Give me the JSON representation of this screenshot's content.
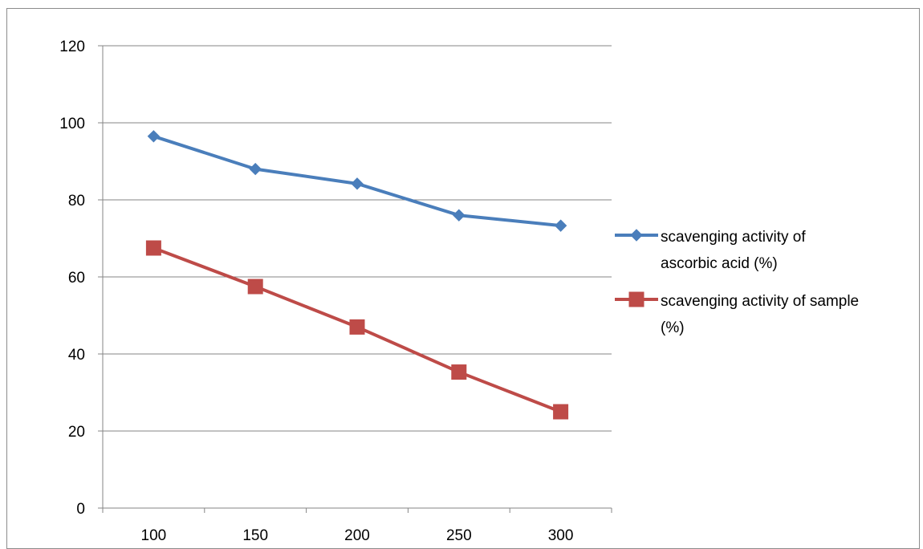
{
  "chart_data": {
    "type": "line",
    "x": [
      100,
      150,
      200,
      250,
      300
    ],
    "ylim": [
      0,
      120
    ],
    "yticks": [
      0,
      20,
      40,
      60,
      80,
      100,
      120
    ],
    "grid": true,
    "legend_position": "right",
    "series": [
      {
        "name": "scavenging activity of ascorbic acid (%)",
        "legend_lines": [
          "scavenging activity of",
          "ascorbic acid (%)"
        ],
        "values": [
          96.5,
          88,
          84.2,
          76,
          73.3
        ],
        "color": "#4a7ebb",
        "marker": "diamond"
      },
      {
        "name": "scavenging activity of sample (%)",
        "legend_lines": [
          "scavenging activity of sample",
          "(%)"
        ],
        "values": [
          67.5,
          57.5,
          47,
          35.3,
          25
        ],
        "color": "#be4b48",
        "marker": "square"
      }
    ]
  }
}
